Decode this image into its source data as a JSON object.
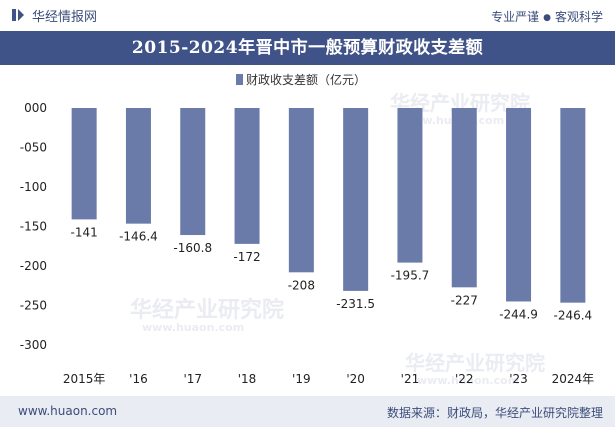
{
  "header": {
    "site_name": "华经情报网",
    "tagline_left": "专业严谨",
    "tagline_right": "客观科学"
  },
  "watermark": {
    "text": "华经产业研究院",
    "url": "www.huaon.com"
  },
  "footer": {
    "url": "www.huaon.com",
    "source": "数据来源：财政局，华经产业研究院整理"
  },
  "colors": {
    "bar": "#6a7aa9",
    "title_bg": "#3f5388",
    "footer_bg": "#e9ecf3"
  },
  "chart_data": {
    "type": "bar",
    "title": "2015-2024年晋中市一般预算财政收支差额",
    "legend": [
      "财政收支差额（亿元）"
    ],
    "legend_position": "top",
    "categories": [
      "2015年",
      "'16",
      "'17",
      "'18",
      "'19",
      "'20",
      "'21",
      "'22",
      "'23",
      "2024年"
    ],
    "series": [
      {
        "name": "财政收支差额（亿元）",
        "values": [
          -141,
          -146.4,
          -160.8,
          -172,
          -208,
          -231.5,
          -195.7,
          -227,
          -244.9,
          -246.4
        ]
      }
    ],
    "data_labels": [
      "-141",
      "-146.4",
      "-160.8",
      "-172",
      "-208",
      "-231.5",
      "-195.7",
      "-227",
      "-244.9",
      "-246.4"
    ],
    "ylim": [
      -300,
      0
    ],
    "yticks": [
      0,
      -50,
      -100,
      -150,
      -200,
      -250,
      -300
    ],
    "ytick_labels": [
      "000",
      "-050",
      "-100",
      "-150",
      "-200",
      "-250",
      "-300"
    ],
    "grid": false
  }
}
